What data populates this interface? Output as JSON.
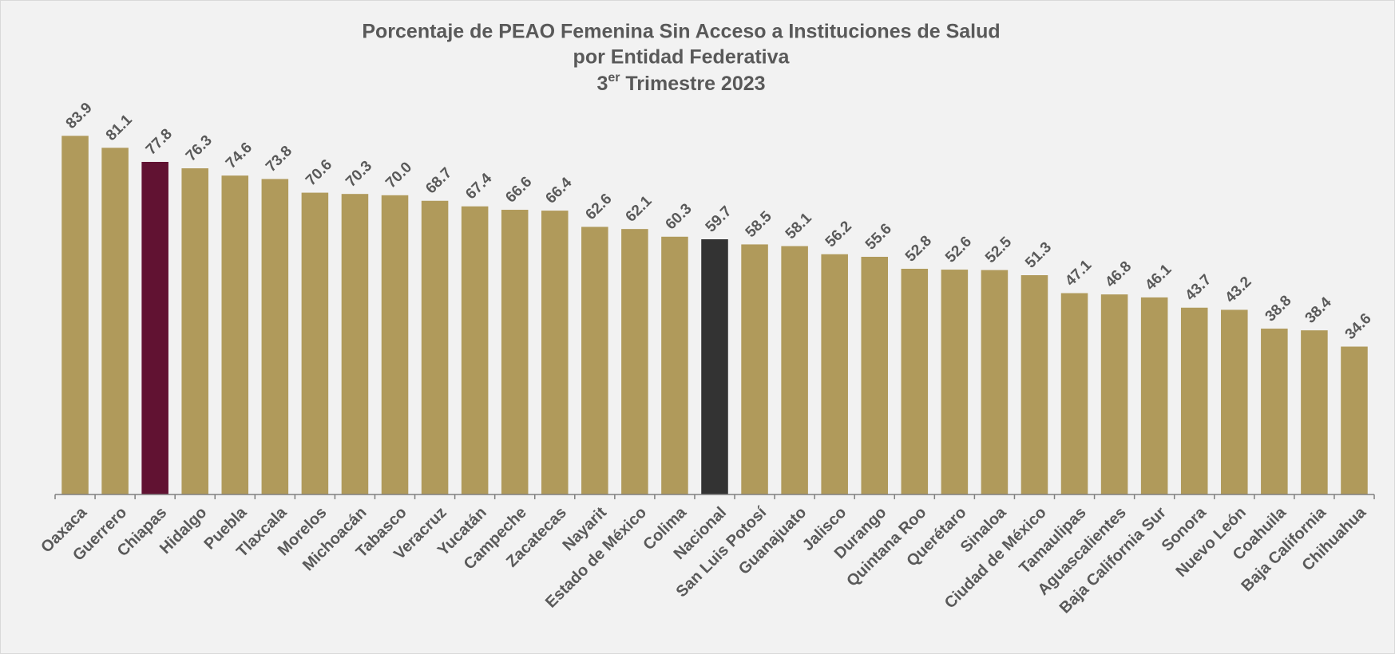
{
  "chart_data": {
    "type": "bar",
    "title": [
      "Porcentaje de PEAO Femenina Sin Acceso a Instituciones de Salud",
      "por Entidad Federativa",
      [
        "3",
        "er",
        " Trimestre 2023"
      ]
    ],
    "categories": [
      "Oaxaca",
      "Guerrero",
      "Chiapas",
      "Hidalgo",
      "Puebla",
      "Tlaxcala",
      "Morelos",
      "Michoacán",
      "Tabasco",
      "Veracruz",
      "Yucatán",
      "Campeche",
      "Zacatecas",
      "Nayarit",
      "Estado de México",
      "Colima",
      "Nacional",
      "San Luis Potosí",
      "Guanajuato",
      "Jalisco",
      "Durango",
      "Quintana Roo",
      "Querétaro",
      "Sinaloa",
      "Ciudad de México",
      "Tamaulipas",
      "Aguascalientes",
      "Baja California Sur",
      "Sonora",
      "Nuevo León",
      "Coahuila",
      "Baja California",
      "Chihuahua"
    ],
    "values": [
      83.9,
      81.1,
      77.8,
      76.3,
      74.6,
      73.8,
      70.6,
      70.3,
      70.0,
      68.7,
      67.4,
      66.6,
      66.4,
      62.6,
      62.1,
      60.3,
      59.7,
      58.5,
      58.1,
      56.2,
      55.6,
      52.8,
      52.6,
      52.5,
      51.3,
      47.1,
      46.8,
      46.1,
      43.7,
      43.2,
      38.8,
      38.4,
      34.6
    ],
    "value_labels": [
      "83.9",
      "81.1",
      "77.8",
      "76.3",
      "74.6",
      "73.8",
      "70.6",
      "70.3",
      "70.0",
      "68.7",
      "67.4",
      "66.6",
      "66.4",
      "62.6",
      "62.1",
      "60.3",
      "59.7",
      "58.5",
      "58.1",
      "56.2",
      "55.6",
      "52.8",
      "52.6",
      "52.5",
      "51.3",
      "47.1",
      "46.8",
      "46.1",
      "43.7",
      "43.2",
      "38.8",
      "38.4",
      "34.6"
    ],
    "colors": [
      "#b09a5b",
      "#b09a5b",
      "#611232",
      "#b09a5b",
      "#b09a5b",
      "#b09a5b",
      "#b09a5b",
      "#b09a5b",
      "#b09a5b",
      "#b09a5b",
      "#b09a5b",
      "#b09a5b",
      "#b09a5b",
      "#b09a5b",
      "#b09a5b",
      "#b09a5b",
      "#333333",
      "#b09a5b",
      "#b09a5b",
      "#b09a5b",
      "#b09a5b",
      "#b09a5b",
      "#b09a5b",
      "#b09a5b",
      "#b09a5b",
      "#b09a5b",
      "#b09a5b",
      "#b09a5b",
      "#b09a5b",
      "#b09a5b",
      "#b09a5b",
      "#b09a5b",
      "#b09a5b"
    ],
    "ylim": [
      0,
      100
    ],
    "grid": false
  }
}
